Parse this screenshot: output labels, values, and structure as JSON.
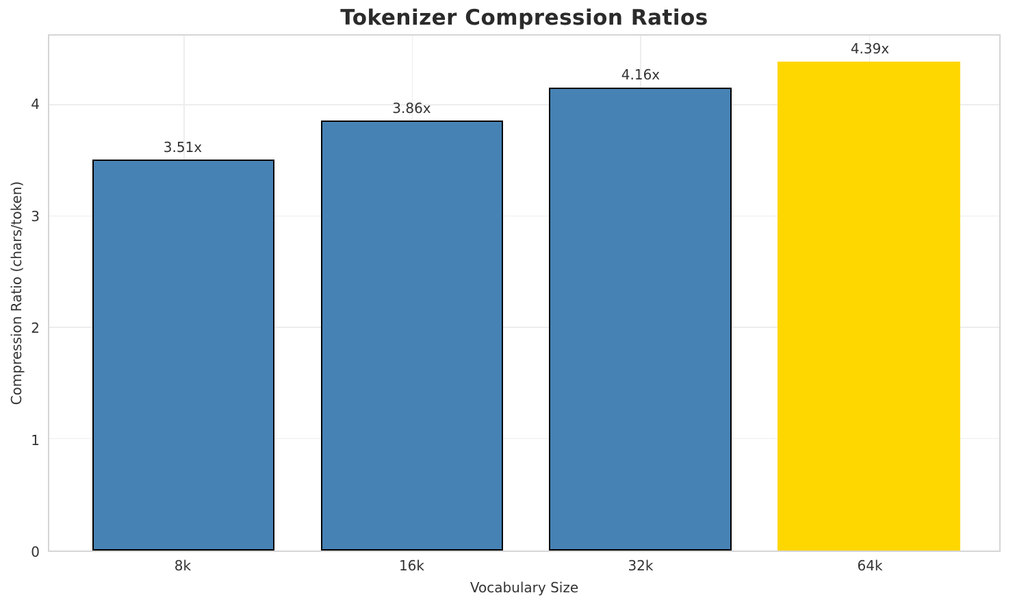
{
  "chart_data": {
    "type": "bar",
    "title": "Tokenizer Compression Ratios",
    "xlabel": "Vocabulary Size",
    "ylabel": "Compression Ratio (chars/token)",
    "categories": [
      "8k",
      "16k",
      "32k",
      "64k"
    ],
    "values": [
      3.51,
      3.86,
      4.16,
      4.39
    ],
    "bar_labels": [
      "3.51x",
      "3.86x",
      "4.16x",
      "4.39x"
    ],
    "yticks": [
      0,
      1,
      2,
      3,
      4
    ],
    "ylim": [
      0,
      4.625
    ],
    "grid": true,
    "legend": "none",
    "bar_colors": [
      "#4682B4",
      "#4682B4",
      "#4682B4",
      "#FFD700"
    ],
    "bar_edge_colors": [
      "#000000",
      "#000000",
      "#000000",
      "none"
    ],
    "highlight_index": 3,
    "grid_color": "#ededed",
    "spine_color": "#d5d5d5",
    "title_color": "#2b2b2b",
    "tick_color": "#333333"
  }
}
